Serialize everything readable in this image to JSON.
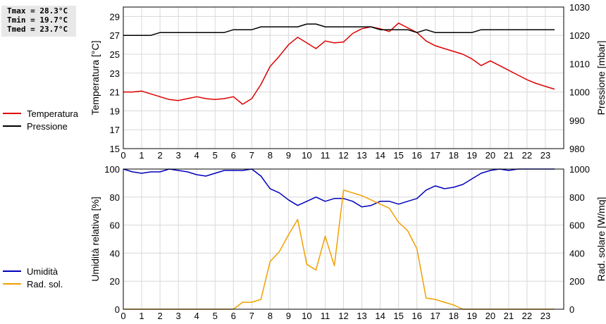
{
  "stats": {
    "tmax": "Tmax = 28.3°C",
    "tmin": "Tmin = 19.7°C",
    "tmed": "Tmed = 23.7°C"
  },
  "legend_top": [
    {
      "label": "Temperatura",
      "color": "#dd0000"
    },
    {
      "label": "Pressione",
      "color": "#000000"
    }
  ],
  "legend_bottom": [
    {
      "label": "Umidità",
      "color": "#0000bb"
    },
    {
      "label": "Rad. sol.",
      "color": "#f0a000"
    }
  ],
  "chart_data": [
    {
      "type": "line",
      "ylabel": "Temperatura [°C]",
      "y2label": "Pressione [mbar]",
      "xlim": [
        0,
        24
      ],
      "ylim": [
        15,
        30
      ],
      "y2lim": [
        980,
        1030
      ],
      "xticks": [
        0,
        1,
        2,
        3,
        4,
        5,
        6,
        7,
        8,
        9,
        10,
        11,
        12,
        13,
        14,
        15,
        16,
        17,
        18,
        19,
        20,
        21,
        22,
        23
      ],
      "yticks": [
        15,
        17,
        19,
        21,
        23,
        25,
        27,
        29
      ],
      "y2ticks": [
        980,
        990,
        1000,
        1010,
        1020,
        1030
      ],
      "grid": true,
      "series": [
        {
          "name": "Temperatura",
          "axis": "left",
          "color": "#dd0000",
          "x": [
            0,
            0.5,
            1,
            1.5,
            2,
            2.5,
            3,
            3.5,
            4,
            4.5,
            5,
            5.5,
            6,
            6.5,
            7,
            7.5,
            8,
            8.5,
            9,
            9.5,
            10,
            10.5,
            11,
            11.5,
            12,
            12.5,
            13,
            13.5,
            14,
            14.5,
            15,
            15.5,
            16,
            16.5,
            17,
            17.5,
            18,
            18.5,
            19,
            19.5,
            20,
            20.5,
            21,
            21.5,
            22,
            22.5,
            23,
            23.5
          ],
          "y": [
            21.0,
            21.0,
            21.1,
            20.8,
            20.5,
            20.2,
            20.1,
            20.3,
            20.5,
            20.3,
            20.2,
            20.3,
            20.5,
            19.7,
            20.3,
            21.8,
            23.7,
            24.8,
            26.0,
            26.8,
            26.2,
            25.6,
            26.4,
            26.2,
            26.3,
            27.2,
            27.7,
            27.9,
            27.7,
            27.4,
            28.3,
            27.8,
            27.3,
            26.4,
            25.9,
            25.6,
            25.3,
            25.0,
            24.5,
            23.8,
            24.3,
            23.8,
            23.3,
            22.8,
            22.3,
            21.9,
            21.6,
            21.3
          ]
        },
        {
          "name": "Pressione",
          "axis": "right",
          "color": "#000000",
          "x": [
            0,
            0.5,
            1,
            1.5,
            2,
            2.5,
            3,
            3.5,
            4,
            4.5,
            5,
            5.5,
            6,
            6.5,
            7,
            7.5,
            8,
            8.5,
            9,
            9.5,
            10,
            10.5,
            11,
            11.5,
            12,
            12.5,
            13,
            13.5,
            14,
            14.5,
            15,
            15.5,
            16,
            16.5,
            17,
            17.5,
            18,
            18.5,
            19,
            19.5,
            20,
            20.5,
            21,
            21.5,
            22,
            22.5,
            23,
            23.5
          ],
          "y": [
            1020,
            1020,
            1020,
            1020,
            1021,
            1021,
            1021,
            1021,
            1021,
            1021,
            1021,
            1021,
            1022,
            1022,
            1022,
            1023,
            1023,
            1023,
            1023,
            1023,
            1024,
            1024,
            1023,
            1023,
            1023,
            1023,
            1023,
            1023,
            1022,
            1022,
            1022,
            1022,
            1021,
            1022,
            1021,
            1021,
            1021,
            1021,
            1021,
            1022,
            1022,
            1022,
            1022,
            1022,
            1022,
            1022,
            1022,
            1022
          ]
        }
      ]
    },
    {
      "type": "line",
      "ylabel": "Umidità relativa [%]",
      "y2label": "Rad. solare [W/mq]",
      "xlim": [
        0,
        24
      ],
      "ylim": [
        0,
        100
      ],
      "y2lim": [
        0,
        1000
      ],
      "xticks": [
        0,
        1,
        2,
        3,
        4,
        5,
        6,
        7,
        8,
        9,
        10,
        11,
        12,
        13,
        14,
        15,
        16,
        17,
        18,
        19,
        20,
        21,
        22,
        23
      ],
      "yticks": [
        0,
        20,
        40,
        60,
        80,
        100
      ],
      "y2ticks": [
        0,
        200,
        400,
        600,
        800,
        1000
      ],
      "grid": true,
      "series": [
        {
          "name": "Umidità",
          "axis": "left",
          "color": "#0000bb",
          "x": [
            0,
            0.5,
            1,
            1.5,
            2,
            2.5,
            3,
            3.5,
            4,
            4.5,
            5,
            5.5,
            6,
            6.5,
            7,
            7.5,
            8,
            8.5,
            9,
            9.5,
            10,
            10.5,
            11,
            11.5,
            12,
            12.5,
            13,
            13.5,
            14,
            14.5,
            15,
            15.5,
            16,
            16.5,
            17,
            17.5,
            18,
            18.5,
            19,
            19.5,
            20,
            20.5,
            21,
            21.5,
            22,
            22.5,
            23,
            23.5
          ],
          "y": [
            100,
            98,
            97,
            98,
            98,
            100,
            99,
            98,
            96,
            95,
            97,
            99,
            99,
            99,
            100,
            95,
            86,
            83,
            78,
            74,
            77,
            80,
            77,
            79,
            79,
            77,
            73,
            74,
            77,
            77,
            75,
            77,
            79,
            85,
            88,
            86,
            87,
            89,
            93,
            97,
            99,
            100,
            99,
            100,
            100,
            100,
            100,
            100
          ]
        },
        {
          "name": "Rad. sol.",
          "axis": "right",
          "color": "#f0a000",
          "x": [
            0,
            0.5,
            1,
            1.5,
            2,
            2.5,
            3,
            3.5,
            4,
            4.5,
            5,
            5.5,
            6,
            6.5,
            7,
            7.5,
            8,
            8.5,
            9,
            9.5,
            10,
            10.5,
            11,
            11.5,
            12,
            12.5,
            13,
            13.5,
            14,
            14.5,
            15,
            15.5,
            16,
            16.5,
            17,
            17.5,
            18,
            18.5,
            19,
            19.5,
            20,
            20.5,
            21,
            21.5,
            22,
            22.5,
            23,
            23.5
          ],
          "y": [
            0,
            0,
            0,
            0,
            0,
            0,
            0,
            0,
            0,
            0,
            0,
            0,
            0,
            50,
            50,
            70,
            340,
            410,
            530,
            640,
            320,
            280,
            520,
            310,
            850,
            830,
            810,
            780,
            750,
            720,
            620,
            560,
            430,
            80,
            70,
            50,
            30,
            0,
            0,
            0,
            0,
            0,
            0,
            0,
            0,
            0,
            0,
            0
          ]
        }
      ]
    }
  ]
}
